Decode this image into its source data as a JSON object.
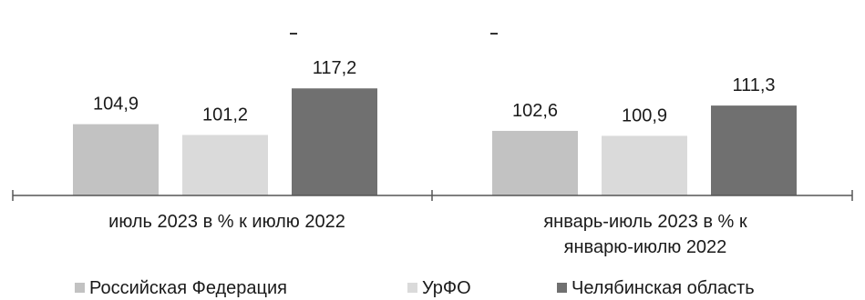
{
  "chart_data": {
    "type": "bar",
    "categories": [
      [
        "июль 2023 в % к июлю 2022"
      ],
      [
        "январь-июль 2023 в % к",
        "январю-июлю 2022"
      ]
    ],
    "series": [
      {
        "name": "Российская Федерация",
        "color": "#c2c2c2",
        "values": [
          104.9,
          102.6
        ],
        "labels": [
          "104,9",
          "102,6"
        ]
      },
      {
        "name": "УрФО",
        "color": "#dadada",
        "values": [
          101.2,
          100.9
        ],
        "labels": [
          "101,2",
          "100,9"
        ]
      },
      {
        "name": "Челябинская область",
        "color": "#707070",
        "values": [
          117.2,
          111.3
        ],
        "labels": [
          "117,2",
          "111,3"
        ]
      }
    ],
    "title": "",
    "xlabel": "",
    "ylabel": "",
    "ylim": [
      80.4,
      120
    ],
    "y_axis_visible": false,
    "grid": false,
    "legend_position": "bottom"
  }
}
